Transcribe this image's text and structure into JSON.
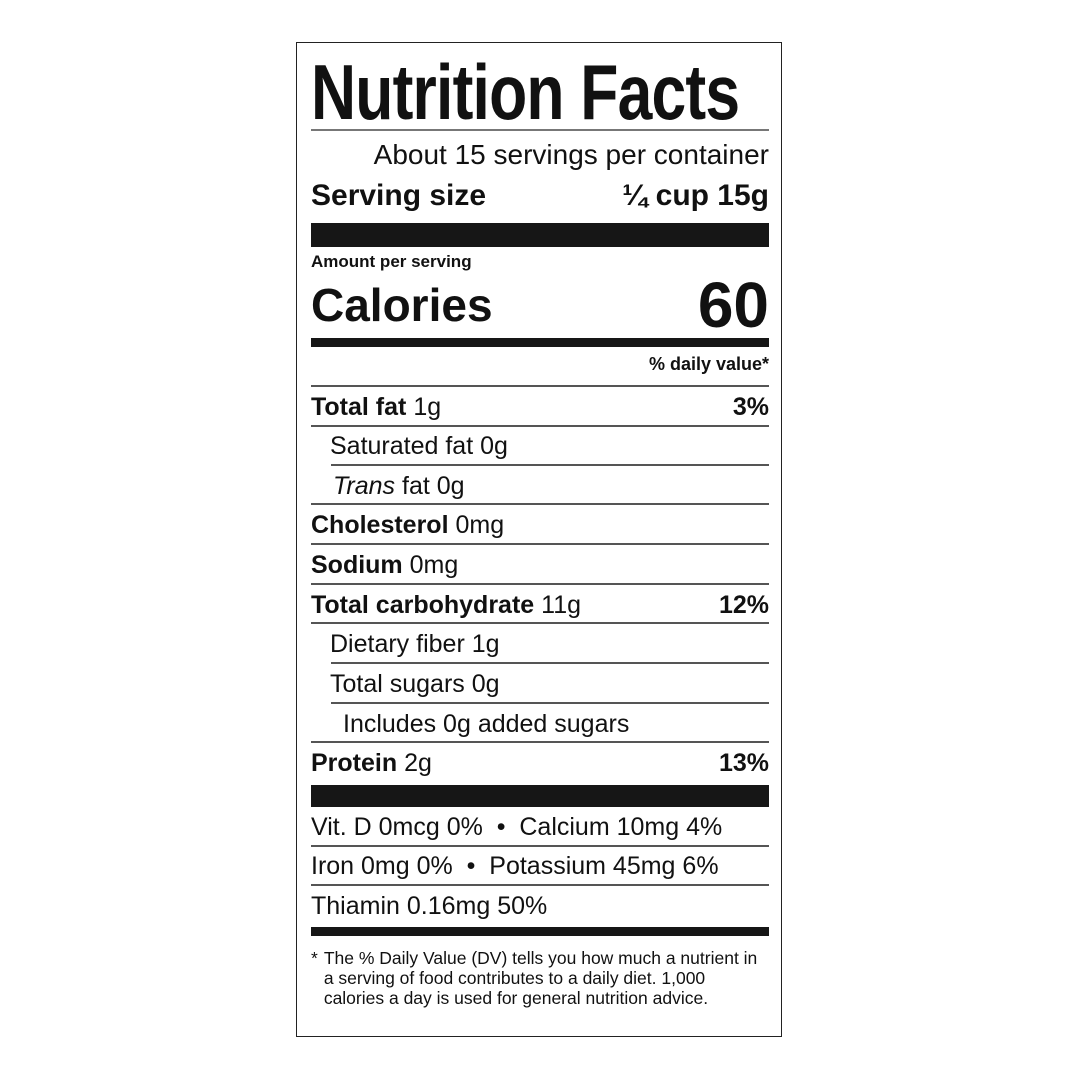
{
  "title": "Nutrition Facts",
  "servings": "About 15 servings per container",
  "serving_size_label": "Serving size",
  "serving_size_value": "¼ cup 15g",
  "amount_per_serving": "Amount per serving",
  "calories_label": "Calories",
  "calories_value": "60",
  "dv_header": "% daily value*",
  "nutrients": [
    {
      "name": "Total fat",
      "amount": "1g",
      "dv": "3%"
    },
    {
      "name": "Saturated fat",
      "amount": "0g"
    },
    {
      "name": "Trans",
      "suffix": "fat",
      "amount": "0g"
    },
    {
      "name": "Cholesterol",
      "amount": "0mg"
    },
    {
      "name": "Sodium",
      "amount": "0mg"
    },
    {
      "name": "Total carbohydrate",
      "amount": "11g",
      "dv": "12%"
    },
    {
      "name": "Dietary fiber",
      "amount": "1g"
    },
    {
      "name": "Total sugars",
      "amount": "0g"
    },
    {
      "name": "Includes 0g added sugars"
    },
    {
      "name": "Protein",
      "amount": "2g",
      "dv": "13%"
    }
  ],
  "micros": [
    "Vit. D 0mcg 0%  •  Calcium 10mg 4%",
    "Iron 0mg 0%  •  Potassium 45mg 6%",
    "Thiamin 0.16mg 50%"
  ],
  "footnote": [
    "*",
    "The % Daily Value (DV) tells you how much a nutrient in a serving of food contributes to a daily diet. 1,000 calories a day is used for general nutrition advice."
  ]
}
